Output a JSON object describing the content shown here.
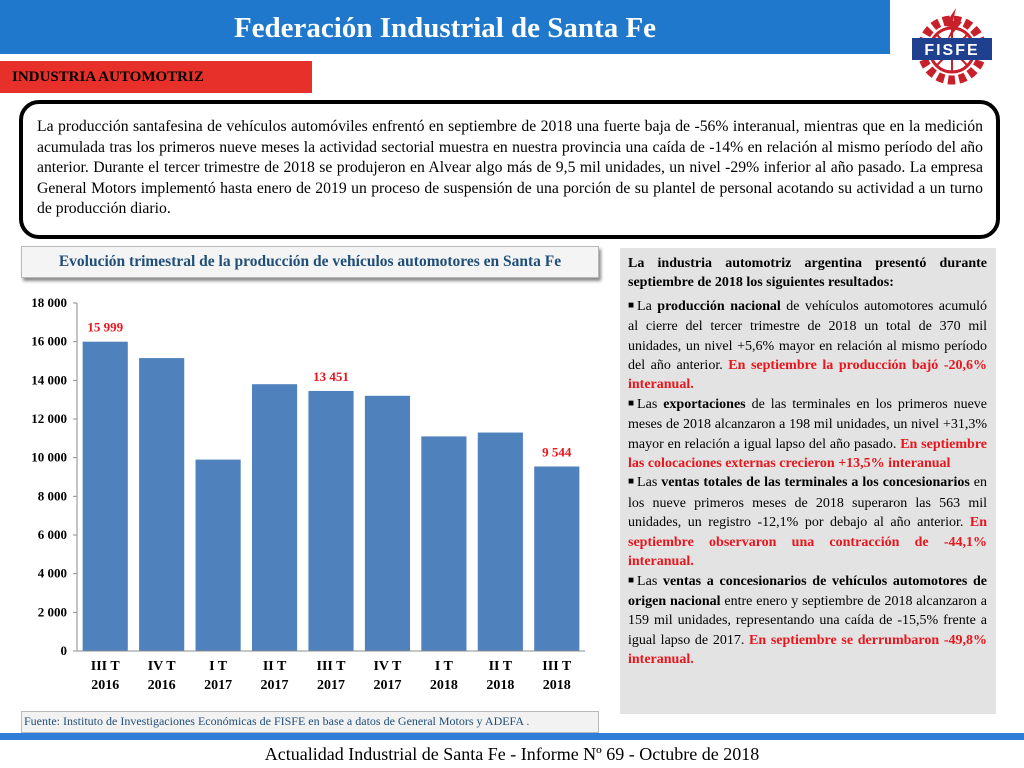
{
  "header": {
    "title": "Federación Industrial de Santa Fe"
  },
  "logo": {
    "text": "FISFE",
    "icon": "fisfe-gear-logo",
    "colors": {
      "gear": "#c8202a",
      "band": "#1f3f8f"
    }
  },
  "section": {
    "label": "INDUSTRIA AUTOMOTRIZ"
  },
  "intro": {
    "text": "La producción santafesina de vehículos automóviles enfrentó en septiembre de 2018 una fuerte baja de -56% interanual, mientras que en la medición acumulada tras los primeros nueve meses la actividad sectorial muestra en nuestra provincia una caída de -14% en relación al mismo período del año anterior. Durante el tercer trimestre de 2018 se produjeron en Alvear algo más de 9,5 mil unidades, un nivel -29% inferior al año pasado. La empresa General Motors implementó hasta enero de 2019 un proceso de suspensión de una porción de su plantel de personal acotando su actividad a un turno de producción diario."
  },
  "chart_data": {
    "type": "bar",
    "title": "Evolución trimestral de la producción de vehículos automotores en Santa Fe",
    "categories": [
      [
        "III T",
        "2016"
      ],
      [
        "IV T",
        "2016"
      ],
      [
        "I T",
        "2017"
      ],
      [
        "II T",
        "2017"
      ],
      [
        "III T",
        "2017"
      ],
      [
        "IV T",
        "2017"
      ],
      [
        "I T",
        "2018"
      ],
      [
        "II T",
        "2018"
      ],
      [
        "III T",
        "2018"
      ]
    ],
    "values": [
      15999,
      15150,
      9900,
      13800,
      13451,
      13200,
      11100,
      11300,
      9544
    ],
    "data_labels": [
      {
        "index": 0,
        "text": "15 999"
      },
      {
        "index": 4,
        "text": "13 451"
      },
      {
        "index": 8,
        "text": "9 544"
      }
    ],
    "yticks": [
      "0",
      "2 000",
      "4 000",
      "6 000",
      "8 000",
      "10 000",
      "12 000",
      "14 000",
      "16 000",
      "18 000"
    ],
    "ylim": [
      0,
      18000
    ],
    "xlabel": "",
    "ylabel": "",
    "grid": false,
    "colors": {
      "bar": "#4f81bd",
      "label": "#e8151c"
    }
  },
  "source": {
    "text": "Fuente: Instituto de Investigaciones Económicas de FISFE en base a datos de General Motors y ADEFA ."
  },
  "side": {
    "intro": "La industria automotriz argentina presentó durante septiembre de 2018 los siguientes resultados:",
    "items": [
      {
        "p1": "La ",
        "b1": "producción nacional",
        "p2": " de vehículos automotores acumuló al cierre del tercer trimestre de 2018 un total de 370 mil unidades, un nivel +5,6% mayor en relación al mismo período del año anterior. ",
        "red": "En septiembre la producción bajó -20,6% interanual."
      },
      {
        "p1": "Las ",
        "b1": "exportaciones",
        "p2": " de las terminales en los primeros nueve meses de 2018 alcanzaron a 198 mil unidades, un nivel +31,3% mayor en relación a igual lapso del año pasado. ",
        "red": "En septiembre las colocaciones externas crecieron +13,5% interanual"
      },
      {
        "p1": "Las ",
        "b1": "ventas totales de las terminales a los concesionarios",
        "p2": " en los nueve primeros meses de 2018 superaron las 563 mil unidades, un registro -12,1% por debajo al año anterior. ",
        "red": "En septiembre observaron una contracción de -44,1% interanual."
      },
      {
        "p1": "Las ",
        "b1": "ventas a concesionarios de vehículos automotores de origen nacional",
        "p2": " entre enero y septiembre de 2018 alcanzaron a 159 mil unidades, representando una caída de -15,5% frente a igual lapso de 2017. ",
        "red": "En septiembre se derrumbaron -49,8% interanual."
      }
    ]
  },
  "footer": {
    "text": "Actualidad Industrial de Santa Fe - Informe Nº 69 - Octubre de 2018"
  }
}
